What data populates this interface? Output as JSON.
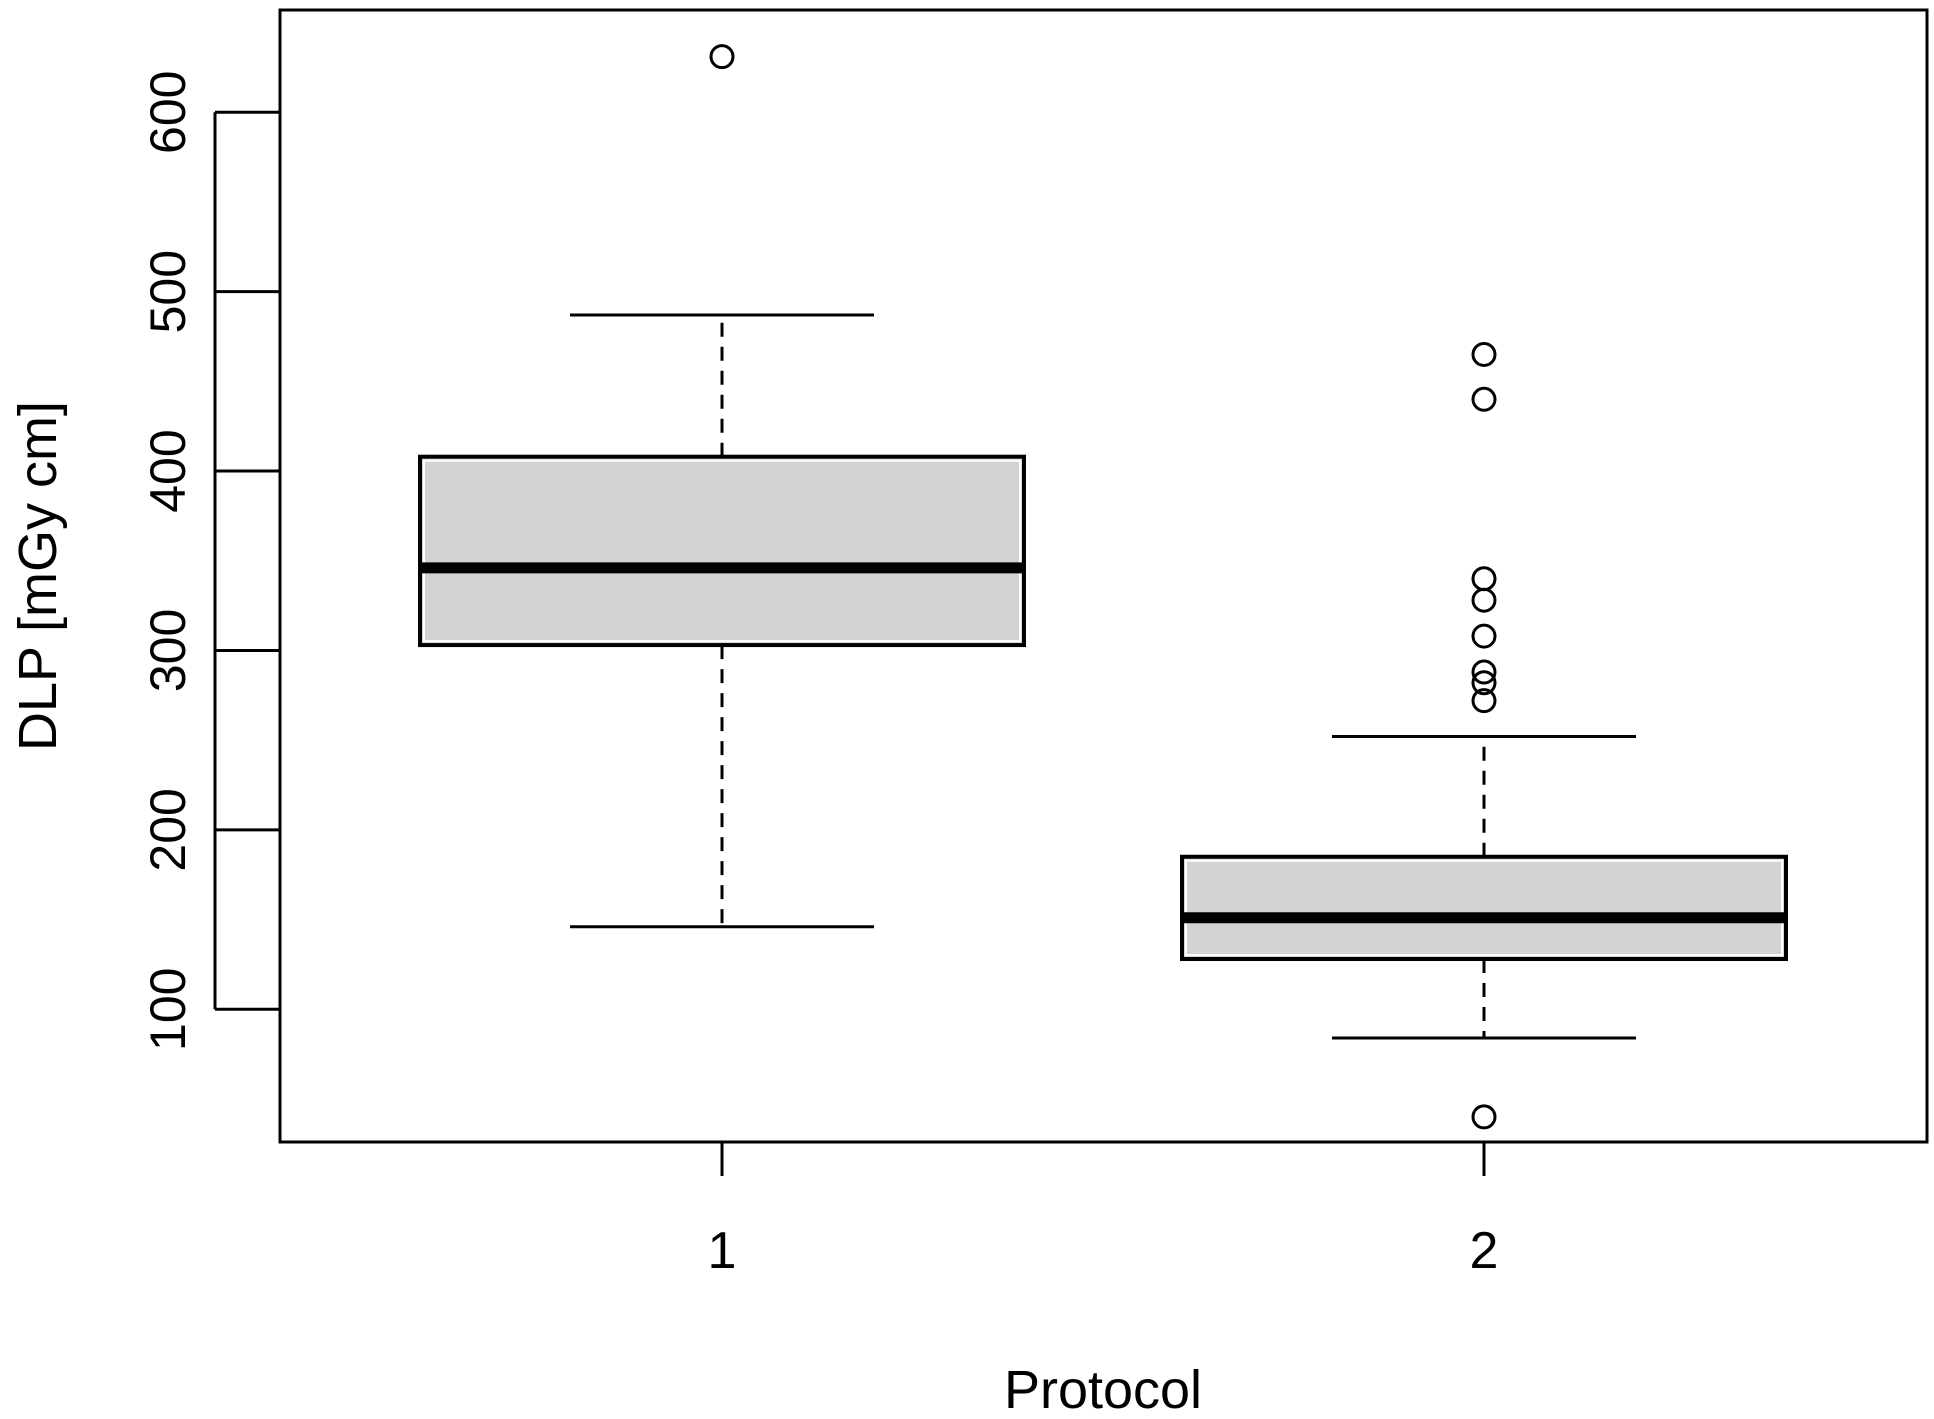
{
  "chart_data": {
    "type": "box",
    "title": "",
    "xlabel": "Protocol",
    "ylabel": "DLP [mGy cm]",
    "categories": [
      "1",
      "2"
    ],
    "yticks": [
      100,
      200,
      300,
      400,
      500,
      600
    ],
    "ylim": [
      26,
      657
    ],
    "grid": false,
    "box_fill": "#d3d3d3",
    "series": [
      {
        "category": "1",
        "whisker_low": 146,
        "q1": 303,
        "median": 346,
        "q3": 408,
        "whisker_high": 487,
        "outliers": [
          631
        ]
      },
      {
        "category": "2",
        "whisker_low": 84,
        "q1": 128,
        "median": 151,
        "q3": 185,
        "whisker_high": 252,
        "outliers": [
          40,
          272,
          282,
          288,
          308,
          328,
          340,
          440,
          465
        ]
      }
    ]
  }
}
